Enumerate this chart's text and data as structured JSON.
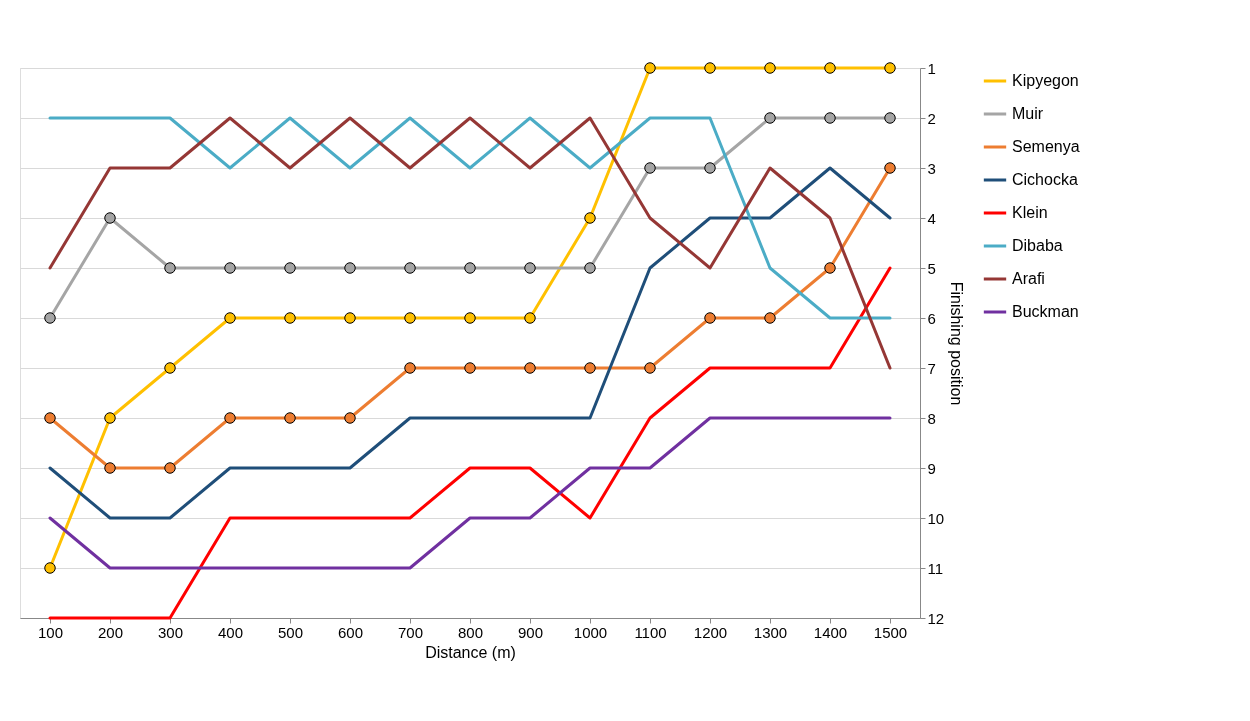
{
  "chart_data": {
    "type": "line",
    "xlabel": "Distance (m)",
    "ylabel": "Finishing position",
    "categories": [
      "100",
      "200",
      "300",
      "400",
      "500",
      "600",
      "700",
      "800",
      "900",
      "1000",
      "1100",
      "1200",
      "1300",
      "1400",
      "1500"
    ],
    "ylim": [
      12,
      1
    ],
    "yticks": [
      1,
      2,
      3,
      4,
      5,
      6,
      7,
      8,
      9,
      10,
      11,
      12
    ],
    "grid": "y",
    "legend": "right",
    "line_style": "solid",
    "series": [
      {
        "name": "Kipyegon",
        "color": "#ffc000",
        "marker": "circle",
        "values": [
          11,
          8,
          7,
          6,
          6,
          6,
          6,
          6,
          6,
          4,
          1,
          1,
          1,
          1,
          1
        ]
      },
      {
        "name": "Muir",
        "color": "#a5a5a5",
        "marker": "circle",
        "values": [
          6,
          4,
          5,
          5,
          5,
          5,
          5,
          5,
          5,
          5,
          3,
          3,
          2,
          2,
          2
        ]
      },
      {
        "name": "Semenya",
        "color": "#ed7d31",
        "marker": "circle",
        "values": [
          8,
          9,
          9,
          8,
          8,
          8,
          7,
          7,
          7,
          7,
          7,
          6,
          6,
          5,
          3
        ]
      },
      {
        "name": "Cichocka",
        "color": "#1f4e79",
        "marker": "none",
        "values": [
          9,
          10,
          10,
          9,
          9,
          9,
          8,
          8,
          8,
          8,
          5,
          4,
          4,
          3,
          4
        ]
      },
      {
        "name": "Klein",
        "color": "#ff0000",
        "marker": "none",
        "values": [
          12,
          12,
          12,
          10,
          10,
          10,
          10,
          9,
          9,
          10,
          8,
          7,
          7,
          7,
          5
        ]
      },
      {
        "name": "Dibaba",
        "color": "#4bacc6",
        "marker": "none",
        "values": [
          2,
          2,
          2,
          3,
          2,
          3,
          2,
          3,
          2,
          3,
          2,
          2,
          5,
          6,
          6
        ]
      },
      {
        "name": "Arafi",
        "color": "#953735",
        "marker": "none",
        "values": [
          5,
          3,
          3,
          2,
          3,
          2,
          3,
          2,
          3,
          2,
          4,
          5,
          3,
          4,
          7
        ]
      },
      {
        "name": "Buckman",
        "color": "#7030a0",
        "marker": "none",
        "values": [
          10,
          11,
          11,
          11,
          11,
          11,
          11,
          10,
          10,
          9,
          9,
          8,
          8,
          8,
          8
        ]
      }
    ]
  }
}
